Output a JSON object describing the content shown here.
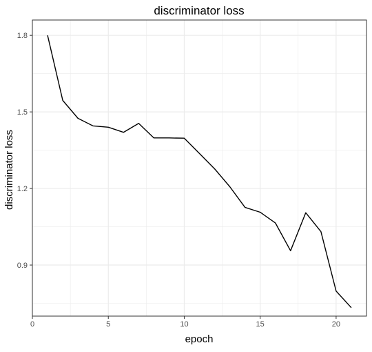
{
  "chart_data": {
    "type": "line",
    "title": "discriminator loss",
    "xlabel": "epoch",
    "ylabel": "discriminator loss",
    "xlim": [
      0,
      22
    ],
    "ylim": [
      0.7,
      1.86
    ],
    "x_ticks": [
      0,
      5,
      10,
      15,
      20
    ],
    "y_ticks": [
      0.9,
      1.2,
      1.5,
      1.8
    ],
    "x_tick_labels": [
      "0",
      "5",
      "10",
      "15",
      "20"
    ],
    "y_tick_labels": [
      "0.9",
      "1.2",
      "1.5",
      "1.8"
    ],
    "grid": true,
    "x": [
      1,
      2,
      3,
      4,
      5,
      6,
      7,
      8,
      9,
      10,
      11,
      12,
      13,
      14,
      15,
      16,
      17,
      18,
      19,
      20,
      21
    ],
    "y": [
      1.8,
      1.545,
      1.475,
      1.445,
      1.44,
      1.42,
      1.455,
      1.398,
      1.398,
      1.397,
      1.337,
      1.277,
      1.207,
      1.126,
      1.107,
      1.065,
      0.956,
      1.105,
      1.031,
      0.798,
      0.733
    ],
    "line_color": "#000000",
    "grid_color": "#ebebeb",
    "panel_border_color": "#333333",
    "text_color": "#000000",
    "tick_label_color": "#4d4d4d"
  }
}
